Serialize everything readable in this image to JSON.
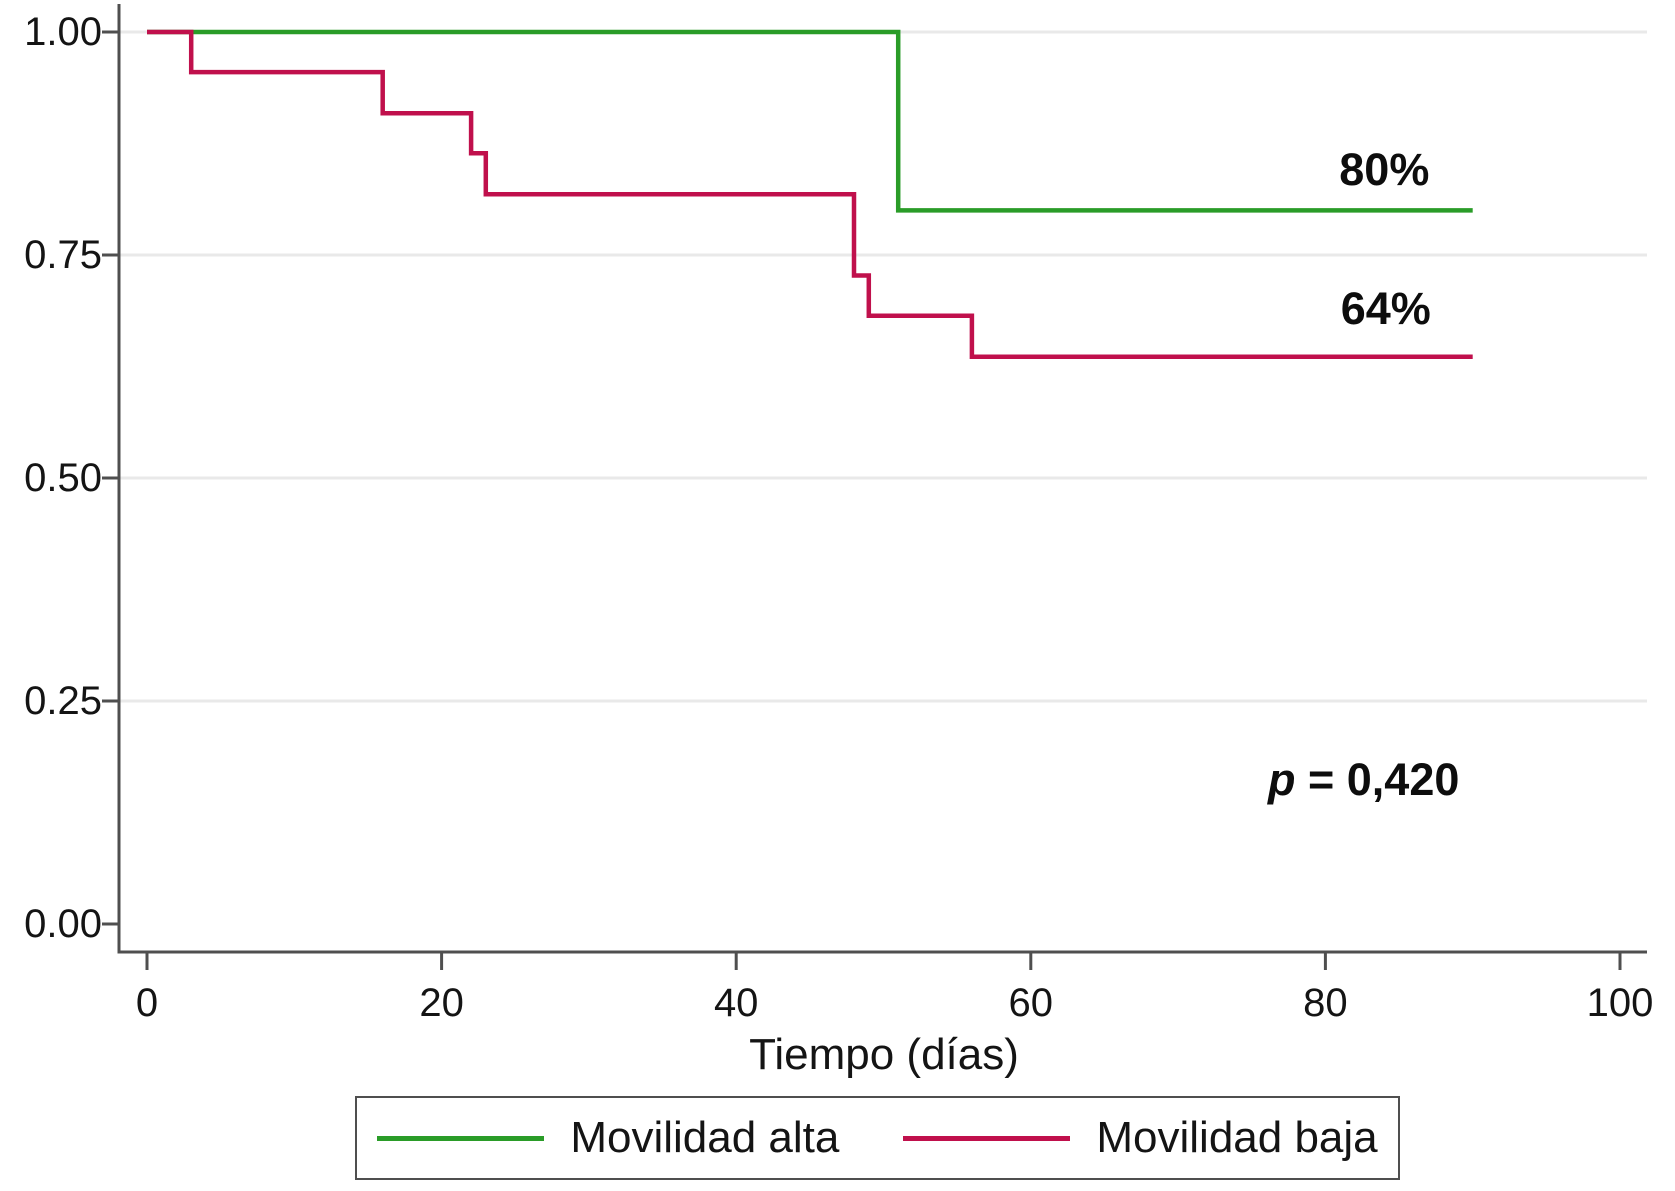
{
  "figure": {
    "background": "#ffffff"
  },
  "colors": {
    "axis": "#4f4f4f",
    "grid": "#e9e9e9",
    "text": "#141414"
  },
  "chart_data": {
    "type": "line",
    "variant": "kaplan-meier-survival-step",
    "title": "",
    "xlabel": "Tiempo (días)",
    "ylabel": "",
    "xlim": [
      0,
      100
    ],
    "ylim": [
      0,
      1
    ],
    "grid": "horizontal-light",
    "legend_position": "bottom-center",
    "x_ticks": [
      {
        "value": 0,
        "label": "0"
      },
      {
        "value": 20,
        "label": "20"
      },
      {
        "value": 40,
        "label": "40"
      },
      {
        "value": 60,
        "label": "60"
      },
      {
        "value": 80,
        "label": "80"
      },
      {
        "value": 100,
        "label": "100"
      }
    ],
    "y_ticks": [
      {
        "value": 0,
        "label": "0.00"
      },
      {
        "value": 0.25,
        "label": "0.25"
      },
      {
        "value": 0.5,
        "label": "0.50"
      },
      {
        "value": 0.75,
        "label": "0.75"
      },
      {
        "value": 1,
        "label": "1.00"
      }
    ],
    "series": [
      {
        "name": "Movilidad alta",
        "color": "#2a9c28",
        "final_value_label": "80%",
        "points": [
          [
            0,
            1.0
          ],
          [
            51,
            1.0
          ],
          [
            51,
            0.8
          ],
          [
            90,
            0.8
          ]
        ]
      },
      {
        "name": "Movilidad baja",
        "color": "#c0104c",
        "final_value_label": "64%",
        "points": [
          [
            0,
            1.0
          ],
          [
            3,
            1.0
          ],
          [
            3,
            0.955
          ],
          [
            16,
            0.955
          ],
          [
            16,
            0.909
          ],
          [
            22,
            0.909
          ],
          [
            22,
            0.864
          ],
          [
            23,
            0.864
          ],
          [
            23,
            0.818
          ],
          [
            48,
            0.818
          ],
          [
            48,
            0.727
          ],
          [
            49,
            0.727
          ],
          [
            49,
            0.682
          ],
          [
            56,
            0.682
          ],
          [
            56,
            0.636
          ],
          [
            90,
            0.636
          ]
        ]
      }
    ],
    "annotations": [
      {
        "id": "alta-final-label",
        "x": 84.0,
        "y": 0.845,
        "parts": [
          {
            "text": "80%",
            "italic": false
          }
        ]
      },
      {
        "id": "baja-final-label",
        "x": 84.1,
        "y": 0.689,
        "parts": [
          {
            "text": "64%",
            "italic": false
          }
        ]
      },
      {
        "id": "p-value",
        "x": 82.6,
        "y": 0.161,
        "parts": [
          {
            "text": "p",
            "italic": true
          },
          {
            "text": " = 0,420",
            "italic": false
          }
        ]
      }
    ],
    "legend": {
      "entries": [
        {
          "label": "Movilidad alta",
          "color": "#2a9c28"
        },
        {
          "label": "Movilidad baja",
          "color": "#c0104c"
        }
      ]
    }
  }
}
